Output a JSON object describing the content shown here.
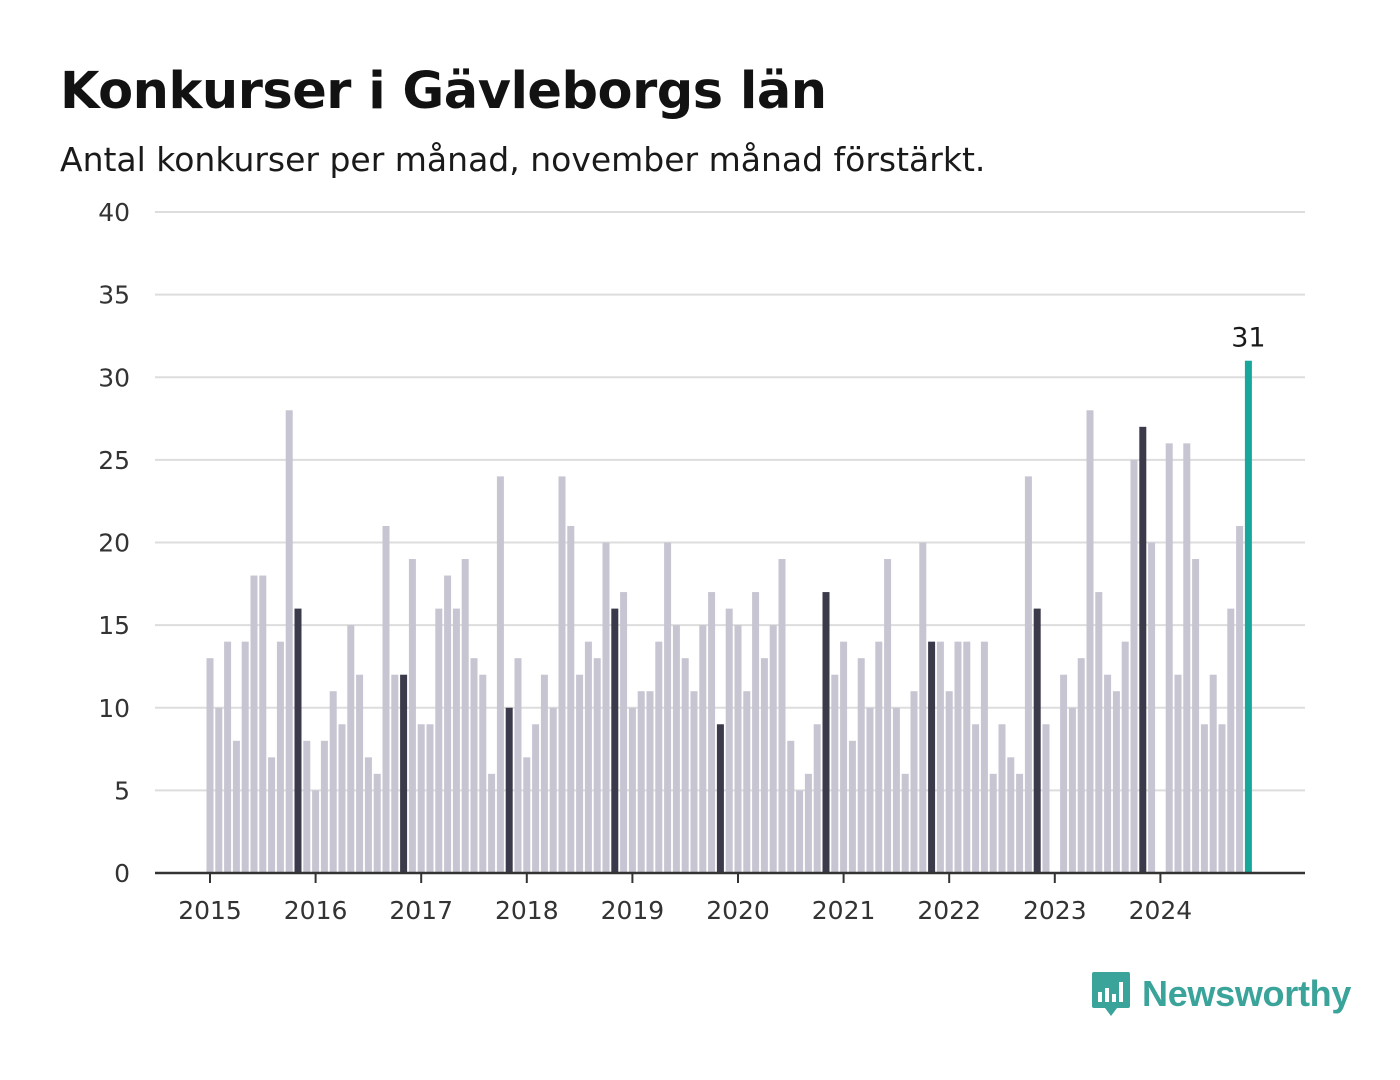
{
  "title": "Konkurser i Gävleborgs län",
  "subtitle": "Antal konkurser per månad, november månad förstärkt.",
  "brand": {
    "name": "Newsworthy",
    "logo_icon": "bar-chart-speech-bubble-icon"
  },
  "colors": {
    "bar": "#c6c5d1",
    "highlight_bar": "#3b3a4a",
    "latest_bar": "#17a89b",
    "grid": "#dddddd",
    "axis": "#333333",
    "brand": "#3aa39a"
  },
  "chart_data": {
    "type": "bar",
    "title": "Konkurser i Gävleborgs län",
    "subtitle": "Antal konkurser per månad, november månad förstärkt.",
    "xlabel": "",
    "ylabel": "",
    "ylim": [
      0,
      40
    ],
    "yticks": [
      0,
      5,
      10,
      15,
      20,
      25,
      30,
      35,
      40
    ],
    "xtick_labels": [
      "2015",
      "2016",
      "2017",
      "2018",
      "2019",
      "2020",
      "2021",
      "2022",
      "2023",
      "2024"
    ],
    "grid": true,
    "start": "2015-01",
    "frequency": "monthly",
    "highlight_month": "november",
    "values": [
      13,
      10,
      14,
      8,
      14,
      18,
      18,
      7,
      14,
      28,
      16,
      8,
      5,
      8,
      11,
      9,
      15,
      12,
      7,
      6,
      21,
      12,
      12,
      19,
      9,
      9,
      16,
      18,
      16,
      19,
      13,
      12,
      6,
      24,
      10,
      13,
      7,
      9,
      12,
      10,
      24,
      21,
      12,
      14,
      13,
      20,
      16,
      17,
      10,
      11,
      11,
      14,
      20,
      15,
      13,
      11,
      15,
      17,
      9,
      16,
      15,
      11,
      17,
      13,
      15,
      19,
      8,
      5,
      6,
      9,
      17,
      12,
      14,
      8,
      13,
      10,
      14,
      19,
      10,
      6,
      11,
      20,
      14,
      14,
      11,
      14,
      14,
      9,
      14,
      6,
      9,
      7,
      6,
      24,
      16,
      9,
      0,
      12,
      10,
      13,
      28,
      17,
      12,
      11,
      14,
      25,
      27,
      20,
      0,
      26,
      12,
      26,
      19,
      9,
      12,
      9,
      16,
      21,
      31
    ],
    "latest_value_label": "31"
  }
}
